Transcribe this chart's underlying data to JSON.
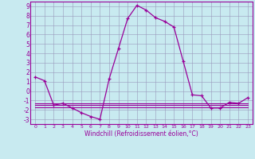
{
  "xlabel": "Windchill (Refroidissement éolien,°C)",
  "x_hours": [
    0,
    1,
    2,
    3,
    4,
    5,
    6,
    7,
    8,
    9,
    10,
    11,
    12,
    13,
    14,
    15,
    16,
    17,
    18,
    19,
    20,
    21,
    22,
    23
  ],
  "temp_line": [
    1.5,
    1.1,
    -1.5,
    -1.3,
    -1.8,
    -2.3,
    -2.7,
    -3.0,
    1.3,
    4.5,
    7.7,
    9.1,
    8.6,
    7.8,
    7.4,
    6.8,
    3.2,
    -0.4,
    -0.5,
    -1.8,
    -1.8,
    -1.2,
    -1.3,
    -0.7
  ],
  "flat_line1": [
    -1.5,
    -1.5,
    -1.5,
    -1.5,
    -1.5,
    -1.5,
    -1.5,
    -1.5,
    -1.5,
    -1.5,
    -1.5,
    -1.5,
    -1.5,
    -1.5,
    -1.5,
    -1.5,
    -1.5,
    -1.5,
    -1.5,
    -1.5,
    -1.5,
    -1.5,
    -1.5,
    -1.5
  ],
  "flat_line2": [
    -1.7,
    -1.7,
    -1.7,
    -1.7,
    -1.7,
    -1.7,
    -1.7,
    -1.7,
    -1.7,
    -1.7,
    -1.7,
    -1.7,
    -1.7,
    -1.7,
    -1.7,
    -1.7,
    -1.7,
    -1.7,
    -1.7,
    -1.7,
    -1.7,
    -1.7,
    -1.7,
    -1.7
  ],
  "flat_line3": [
    -1.3,
    -1.3,
    -1.3,
    -1.3,
    -1.3,
    -1.3,
    -1.3,
    -1.3,
    -1.3,
    -1.3,
    -1.3,
    -1.3,
    -1.3,
    -1.3,
    -1.3,
    -1.3,
    -1.3,
    -1.3,
    -1.3,
    -1.3,
    -1.3,
    -1.3,
    -1.3,
    -1.3
  ],
  "main_color": "#990099",
  "bg_color": "#c8eaf0",
  "grid_color": "#9999bb",
  "ylim": [
    -3.5,
    9.5
  ],
  "yticks": [
    -3,
    -2,
    -1,
    0,
    1,
    2,
    3,
    4,
    5,
    6,
    7,
    8,
    9
  ],
  "xlim": [
    -0.5,
    23.5
  ],
  "ytick_fontsize": 5.5,
  "xtick_fontsize": 4.5,
  "xlabel_fontsize": 5.5
}
